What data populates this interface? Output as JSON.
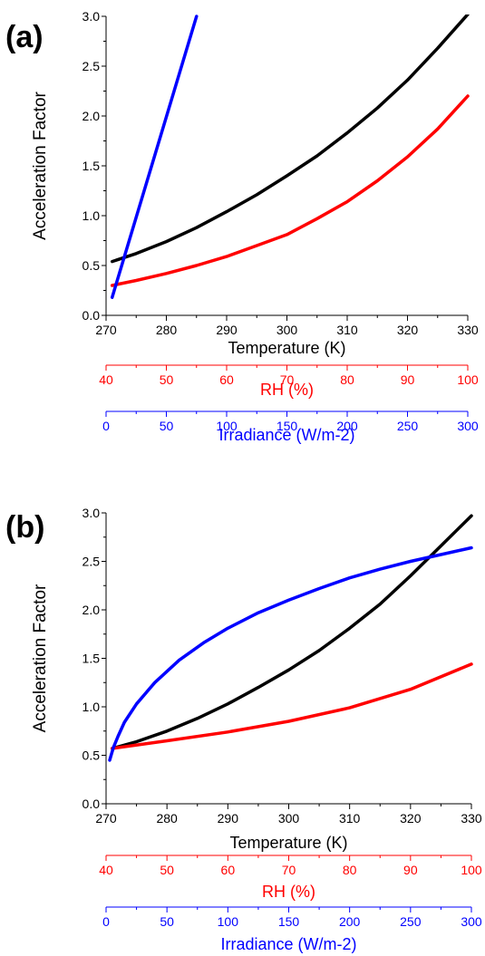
{
  "chart_data": [
    {
      "type": "line",
      "panel_label": "(a)",
      "ylabel": "Acceleration Factor",
      "ylim": [
        0,
        3.0
      ],
      "yticks": [
        "0.0",
        "0.5",
        "1.0",
        "1.5",
        "2.0",
        "2.5",
        "3.0"
      ],
      "x_axes": [
        {
          "label": "Temperature (K)",
          "range": [
            270,
            330
          ],
          "ticks": [
            "270",
            "280",
            "290",
            "300",
            "310",
            "320",
            "330"
          ],
          "color": "#000000"
        },
        {
          "label": "RH (%)",
          "range": [
            40,
            100
          ],
          "ticks": [
            "40",
            "50",
            "60",
            "70",
            "80",
            "90",
            "100"
          ],
          "color": "#ff0000"
        },
        {
          "label": "Irradiance (W/m-2)",
          "range": [
            0,
            300
          ],
          "ticks": [
            "0",
            "50",
            "100",
            "150",
            "200",
            "250",
            "300"
          ],
          "color": "#0000ff"
        }
      ],
      "series": [
        {
          "color": "#000000",
          "axis": 0,
          "x": [
            271,
            275,
            280,
            285,
            290,
            295,
            300,
            305,
            310,
            315,
            320,
            325,
            330
          ],
          "y": [
            0.54,
            0.62,
            0.74,
            0.88,
            1.04,
            1.21,
            1.4,
            1.6,
            1.83,
            2.08,
            2.36,
            2.68,
            3.02
          ]
        },
        {
          "color": "#ff0000",
          "axis": 1,
          "x": [
            41,
            45,
            50,
            55,
            60,
            65,
            70,
            75,
            80,
            85,
            90,
            95,
            100
          ],
          "y": [
            0.3,
            0.35,
            0.42,
            0.5,
            0.59,
            0.7,
            0.81,
            0.97,
            1.14,
            1.35,
            1.59,
            1.87,
            2.2
          ]
        },
        {
          "color": "#0000ff",
          "axis": 2,
          "x": [
            5,
            75
          ],
          "y": [
            0.18,
            3.0
          ]
        }
      ]
    },
    {
      "type": "line",
      "panel_label": "(b)",
      "ylabel": "Acceleration Factor",
      "ylim": [
        0,
        3.0
      ],
      "yticks": [
        "0.0",
        "0.5",
        "1.0",
        "1.5",
        "2.0",
        "2.5",
        "3.0"
      ],
      "x_axes": [
        {
          "label": "Temperature (K)",
          "range": [
            270,
            330
          ],
          "ticks": [
            "270",
            "280",
            "290",
            "300",
            "310",
            "320",
            "330"
          ],
          "color": "#000000"
        },
        {
          "label": "RH (%)",
          "range": [
            40,
            100
          ],
          "ticks": [
            "40",
            "50",
            "60",
            "70",
            "80",
            "90",
            "100"
          ],
          "color": "#ff0000"
        },
        {
          "label": "Irradiance (W/m-2)",
          "range": [
            0,
            300
          ],
          "ticks": [
            "0",
            "50",
            "100",
            "150",
            "200",
            "250",
            "300"
          ],
          "color": "#0000ff"
        }
      ],
      "series": [
        {
          "color": "#000000",
          "axis": 0,
          "x": [
            271,
            275,
            280,
            285,
            290,
            295,
            300,
            305,
            310,
            315,
            320,
            325,
            330
          ],
          "y": [
            0.57,
            0.64,
            0.75,
            0.88,
            1.03,
            1.2,
            1.38,
            1.58,
            1.81,
            2.06,
            2.35,
            2.66,
            2.97
          ]
        },
        {
          "color": "#ff0000",
          "axis": 1,
          "x": [
            41,
            50,
            60,
            70,
            80,
            90,
            100
          ],
          "y": [
            0.57,
            0.65,
            0.74,
            0.85,
            0.99,
            1.18,
            1.44
          ]
        },
        {
          "color": "#0000ff",
          "axis": 2,
          "x": [
            3,
            6,
            10,
            15,
            25,
            40,
            60,
            80,
            100,
            125,
            150,
            175,
            200,
            225,
            250,
            275,
            300
          ],
          "y": [
            0.45,
            0.58,
            0.7,
            0.84,
            1.03,
            1.25,
            1.48,
            1.66,
            1.81,
            1.97,
            2.1,
            2.22,
            2.33,
            2.42,
            2.5,
            2.57,
            2.64
          ]
        }
      ]
    }
  ]
}
